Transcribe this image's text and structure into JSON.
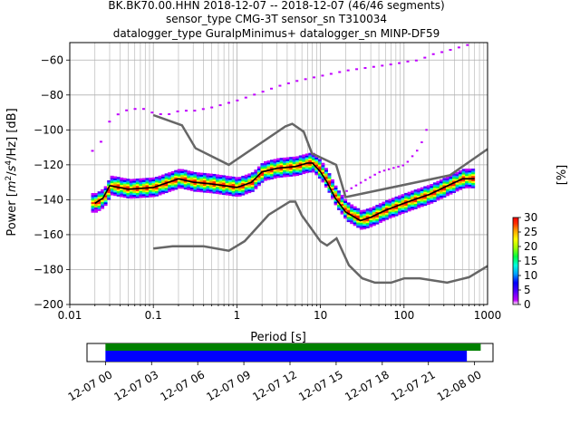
{
  "header": {
    "line1": "BK.BK70.00.HHN   2018-12-07 -- 2018-12-07  (46/46 segments)",
    "line2": "sensor_type CMG-3T sensor_sn T310034",
    "line3": "datalogger_type GuralpMinimus+ datalogger_sn MINP-DF59"
  },
  "colorbar": {
    "label": "[%]",
    "ticks": [
      "0",
      "5",
      "10",
      "15",
      "20",
      "25",
      "30"
    ],
    "min": 0,
    "max": 30
  },
  "chart_data": [
    {
      "type": "heatmap",
      "subtype": "PPSD",
      "xlabel": "Period [s]",
      "ylabel_parts": [
        "Power [",
        "m",
        "2",
        "/",
        "s",
        "4",
        "/Hz] [dB]"
      ],
      "x_scale": "log",
      "xlim": [
        0.01,
        1000
      ],
      "ylim": [
        -200,
        -50
      ],
      "x_tick_labels": [
        "0.01",
        "0.1",
        "1",
        "10",
        "100",
        "1000"
      ],
      "y_tick_labels": [
        "−200",
        "−180",
        "−160",
        "−140",
        "−120",
        "−100",
        "−80",
        "−60"
      ],
      "y_ticks": [
        -200,
        -180,
        -160,
        -140,
        -120,
        -100,
        -80,
        -60
      ],
      "grid": true,
      "noise_model_high": {
        "period": [
          0.1,
          0.22,
          0.32,
          0.8,
          3.8,
          4.6,
          6.3,
          7.9,
          15.4,
          20,
          354.8,
          1000
        ],
        "db": [
          -91.5,
          -97.4,
          -110.5,
          -120,
          -98,
          -96.5,
          -101,
          -113.5,
          -120,
          -138.5,
          -126,
          -111
        ]
      },
      "noise_model_low": {
        "period": [
          0.1,
          0.17,
          0.4,
          0.8,
          1.24,
          2.4,
          4.3,
          5,
          6,
          10,
          12,
          15.6,
          21.9,
          31.6,
          45,
          70,
          101,
          154,
          328,
          600,
          1000
        ],
        "db": [
          -168,
          -166.7,
          -166.7,
          -169.2,
          -163.7,
          -148.6,
          -141.1,
          -141.1,
          -149,
          -163.8,
          -166.2,
          -162.1,
          -177.5,
          -185,
          -187.5,
          -187.5,
          -185,
          -185,
          -187.5,
          -184.4,
          -178
        ]
      },
      "mode_curve": {
        "period": [
          0.02,
          0.025,
          0.03,
          0.05,
          0.1,
          0.2,
          0.3,
          0.5,
          1,
          1.5,
          2,
          3,
          5,
          7,
          8,
          10,
          12,
          15,
          20,
          30,
          40,
          60,
          100,
          150,
          200,
          300,
          500,
          700
        ],
        "db": [
          -142,
          -139,
          -132,
          -134,
          -133,
          -128,
          -130,
          -131,
          -133,
          -130,
          -124,
          -122,
          -121,
          -119,
          -119,
          -124,
          -130,
          -139,
          -147,
          -152,
          -150,
          -146,
          -142,
          -139,
          -137,
          -133,
          -128,
          -128
        ]
      },
      "outlier_curve": {
        "period": [
          0.02,
          0.025,
          0.03,
          0.05,
          0.08,
          0.1,
          0.15,
          0.2,
          0.3,
          0.5,
          1,
          2,
          3,
          5,
          10,
          20,
          40,
          80,
          100,
          150,
          200,
          300,
          500,
          700
        ],
        "db": [
          -112,
          -103,
          -93,
          -88,
          -88,
          -91,
          -91,
          -89,
          -89,
          -87,
          -83,
          -78,
          -75,
          -72,
          -69,
          -66,
          -64,
          -62,
          -61,
          -60,
          -57,
          -55,
          -52,
          -50
        ]
      },
      "late_tail_curve": {
        "period": [
          20,
          30,
          50,
          70,
          100,
          150,
          180
        ],
        "db": [
          -135,
          -130,
          -124,
          -122,
          -120,
          -110,
          -100
        ]
      },
      "colormap": [
        "#ffffff",
        "#c000ff",
        "#5000ff",
        "#0000ff",
        "#00a0ff",
        "#00ffe0",
        "#00ff40",
        "#a0ff00",
        "#ffff00",
        "#ffa000",
        "#ff3000",
        "#ff0000"
      ]
    },
    {
      "type": "timeline",
      "x_tick_labels": [
        "12-07 00",
        "12-07 03",
        "12-07 06",
        "12-07 09",
        "12-07 12",
        "12-07 15",
        "12-07 18",
        "12-07 21",
        "12-08 00"
      ],
      "x_ticks_hours": [
        0,
        3,
        6,
        9,
        12,
        15,
        18,
        21,
        24
      ],
      "xlim_hours": [
        -1.2,
        25.2
      ],
      "bars": [
        {
          "name": "",
          "color": "#008000",
          "start_hours": 0,
          "end_hours": 24.4
        },
        {
          "name": "",
          "color": "#0000ff",
          "start_hours": 0,
          "end_hours": 23.5
        }
      ]
    }
  ]
}
